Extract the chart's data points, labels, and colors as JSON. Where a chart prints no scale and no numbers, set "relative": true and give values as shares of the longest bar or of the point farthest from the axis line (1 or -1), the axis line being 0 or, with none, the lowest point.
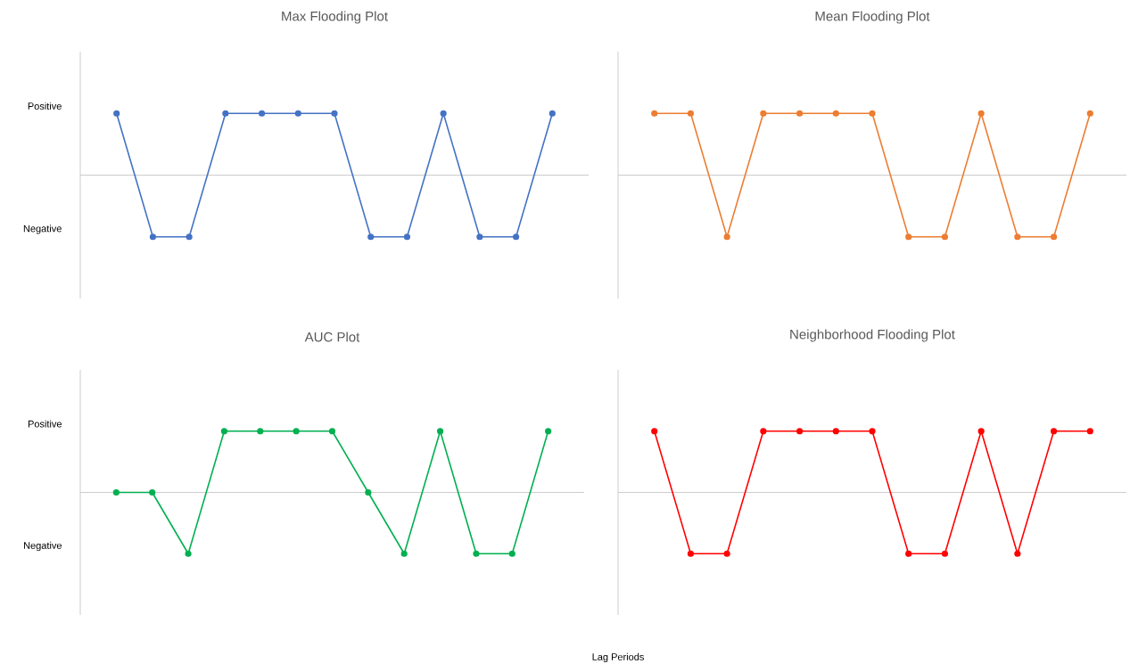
{
  "chart_data": [
    {
      "type": "line",
      "title": "Max Flooding Plot",
      "relative": true,
      "annotations": [
        "Positive",
        "Negative"
      ],
      "categories": [
        null,
        null,
        null,
        null,
        null,
        null,
        null,
        null,
        null,
        null,
        null,
        null,
        null
      ],
      "values": [
        1,
        -1,
        -1,
        1,
        1,
        1,
        1,
        -1,
        -1,
        1,
        -1,
        -1,
        1
      ],
      "color": "#4472c4",
      "marker": "circle"
    },
    {
      "type": "line",
      "title": "Mean Flooding Plot",
      "relative": true,
      "categories": [
        null,
        null,
        null,
        null,
        null,
        null,
        null,
        null,
        null,
        null,
        null,
        null,
        null
      ],
      "values": [
        1,
        1,
        -1,
        1,
        1,
        1,
        1,
        -1,
        -1,
        1,
        -1,
        -1,
        1
      ],
      "color": "#ed7d31",
      "marker": "circle"
    },
    {
      "type": "line",
      "title": "AUC Plot",
      "relative": true,
      "annotations": [
        "Positive",
        "Negative"
      ],
      "xlabel": "Lag Periods",
      "categories": [
        null,
        null,
        null,
        null,
        null,
        null,
        null,
        null,
        null,
        null,
        null,
        null,
        null
      ],
      "values": [
        0,
        0,
        -1,
        1,
        1,
        1,
        1,
        0,
        -1,
        1,
        -1,
        -1,
        1
      ],
      "color": "#00b050",
      "marker": "circle"
    },
    {
      "type": "line",
      "title": "Neighborhood Flooding Plot",
      "relative": true,
      "categories": [
        null,
        null,
        null,
        null,
        null,
        null,
        null,
        null,
        null,
        null,
        null,
        null,
        null
      ],
      "values": [
        1,
        -1,
        -1,
        1,
        1,
        1,
        1,
        -1,
        -1,
        1,
        -1,
        1,
        1
      ],
      "color": "#ff0000",
      "marker": "circle"
    }
  ]
}
